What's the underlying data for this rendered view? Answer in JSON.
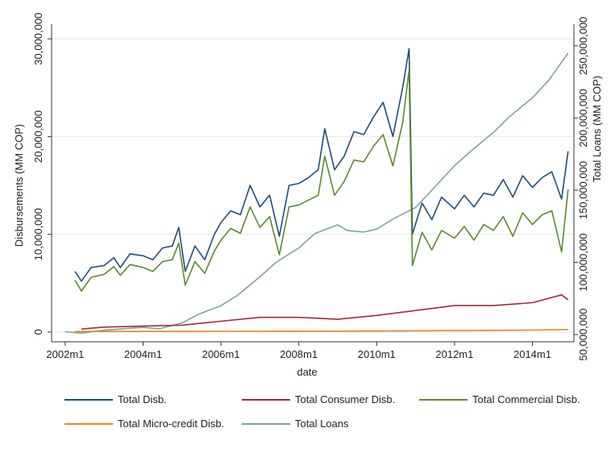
{
  "chart_data": {
    "type": "line",
    "xlabel": "date",
    "ylabel_left": "Disbursements (MM COP)",
    "ylabel_right": "Total Loans (MM COP)",
    "x_range": [
      "2002m1",
      "2014m12"
    ],
    "x_ticks": [
      "2002m1",
      "2004m1",
      "2006m1",
      "2008m1",
      "2010m1",
      "2012m1",
      "2014m1"
    ],
    "y_left_ticks": [
      0,
      10000000,
      20000000,
      30000000
    ],
    "y_left_tick_labels": [
      "0",
      "10,000,000",
      "20,000,000",
      "30,000,000"
    ],
    "y_left_range": [
      -1000000,
      31500000
    ],
    "y_right_ticks": [
      50000000,
      100000000,
      150000000,
      200000000,
      250000000
    ],
    "y_right_tick_labels": [
      "50,000,000",
      "100,000,000",
      "150,000,000",
      "200,000,000",
      "250,000,000"
    ],
    "y_right_range": [
      45000000,
      265000000
    ],
    "grid": "horizontal",
    "legend_position": "bottom",
    "series": [
      {
        "name": "Total Disb.",
        "axis": "left",
        "color": "#1f4e79",
        "points": [
          [
            "2002m4",
            6200000
          ],
          [
            "2002m6",
            5200000
          ],
          [
            "2002m9",
            6600000
          ],
          [
            "2003m1",
            6800000
          ],
          [
            "2003m4",
            7600000
          ],
          [
            "2003m6",
            6600000
          ],
          [
            "2003m9",
            8000000
          ],
          [
            "2004m1",
            7800000
          ],
          [
            "2004m4",
            7400000
          ],
          [
            "2004m7",
            8600000
          ],
          [
            "2004m10",
            8800000
          ],
          [
            "2004m12",
            10700000
          ],
          [
            "2005m2",
            6200000
          ],
          [
            "2005m5",
            8800000
          ],
          [
            "2005m8",
            7400000
          ],
          [
            "2005m11",
            10000000
          ],
          [
            "2006m1",
            11200000
          ],
          [
            "2006m4",
            12400000
          ],
          [
            "2006m7",
            12000000
          ],
          [
            "2006m10",
            15000000
          ],
          [
            "2007m1",
            12800000
          ],
          [
            "2007m4",
            14000000
          ],
          [
            "2007m7",
            9800000
          ],
          [
            "2007m10",
            15000000
          ],
          [
            "2008m1",
            15200000
          ],
          [
            "2008m4",
            15800000
          ],
          [
            "2008m7",
            16600000
          ],
          [
            "2008m9",
            20800000
          ],
          [
            "2008m12",
            16600000
          ],
          [
            "2009m3",
            18000000
          ],
          [
            "2009m6",
            20500000
          ],
          [
            "2009m9",
            20200000
          ],
          [
            "2009m12",
            22000000
          ],
          [
            "2010m3",
            23500000
          ],
          [
            "2010m6",
            20000000
          ],
          [
            "2010m9",
            25000000
          ],
          [
            "2010m11",
            29000000
          ],
          [
            "2010m12",
            10000000
          ],
          [
            "2011m3",
            13200000
          ],
          [
            "2011m6",
            11500000
          ],
          [
            "2011m9",
            13800000
          ],
          [
            "2012m1",
            12600000
          ],
          [
            "2012m4",
            14000000
          ],
          [
            "2012m7",
            12800000
          ],
          [
            "2012m10",
            14200000
          ],
          [
            "2013m1",
            14000000
          ],
          [
            "2013m4",
            15600000
          ],
          [
            "2013m7",
            13800000
          ],
          [
            "2013m10",
            16000000
          ],
          [
            "2014m1",
            14800000
          ],
          [
            "2014m4",
            15800000
          ],
          [
            "2014m7",
            16400000
          ],
          [
            "2014m10",
            13600000
          ],
          [
            "2014m12",
            18500000
          ]
        ]
      },
      {
        "name": "Total Consumer Disb.",
        "axis": "left",
        "color": "#a52a3a",
        "points": [
          [
            "2002m6",
            300000
          ],
          [
            "2003m1",
            500000
          ],
          [
            "2004m1",
            600000
          ],
          [
            "2005m1",
            700000
          ],
          [
            "2006m1",
            1100000
          ],
          [
            "2007m1",
            1500000
          ],
          [
            "2008m1",
            1500000
          ],
          [
            "2009m1",
            1300000
          ],
          [
            "2010m1",
            1700000
          ],
          [
            "2011m1",
            2200000
          ],
          [
            "2012m1",
            2700000
          ],
          [
            "2013m1",
            2700000
          ],
          [
            "2014m1",
            3000000
          ],
          [
            "2014m10",
            3800000
          ],
          [
            "2014m12",
            3300000
          ]
        ]
      },
      {
        "name": "Total Commercial Disb.",
        "axis": "left",
        "color": "#5b8a2c",
        "points": [
          [
            "2002m4",
            5300000
          ],
          [
            "2002m6",
            4200000
          ],
          [
            "2002m9",
            5600000
          ],
          [
            "2003m1",
            5900000
          ],
          [
            "2003m4",
            6700000
          ],
          [
            "2003m6",
            5800000
          ],
          [
            "2003m9",
            6900000
          ],
          [
            "2004m1",
            6600000
          ],
          [
            "2004m4",
            6200000
          ],
          [
            "2004m7",
            7200000
          ],
          [
            "2004m10",
            7400000
          ],
          [
            "2004m12",
            9100000
          ],
          [
            "2005m2",
            4800000
          ],
          [
            "2005m5",
            7200000
          ],
          [
            "2005m8",
            6000000
          ],
          [
            "2005m11",
            8300000
          ],
          [
            "2006m1",
            9400000
          ],
          [
            "2006m4",
            10600000
          ],
          [
            "2006m7",
            10100000
          ],
          [
            "2006m10",
            12800000
          ],
          [
            "2007m1",
            10700000
          ],
          [
            "2007m4",
            11800000
          ],
          [
            "2007m7",
            7900000
          ],
          [
            "2007m10",
            12800000
          ],
          [
            "2008m1",
            13000000
          ],
          [
            "2008m4",
            13500000
          ],
          [
            "2008m7",
            14000000
          ],
          [
            "2008m9",
            18000000
          ],
          [
            "2008m12",
            14000000
          ],
          [
            "2009m3",
            15400000
          ],
          [
            "2009m6",
            17600000
          ],
          [
            "2009m9",
            17400000
          ],
          [
            "2009m12",
            19000000
          ],
          [
            "2010m3",
            20200000
          ],
          [
            "2010m6",
            17000000
          ],
          [
            "2010m9",
            21400000
          ],
          [
            "2010m11",
            26800000
          ],
          [
            "2010m12",
            6800000
          ],
          [
            "2011m3",
            10200000
          ],
          [
            "2011m6",
            8400000
          ],
          [
            "2011m9",
            10400000
          ],
          [
            "2012m1",
            9600000
          ],
          [
            "2012m4",
            10800000
          ],
          [
            "2012m7",
            9400000
          ],
          [
            "2012m10",
            11000000
          ],
          [
            "2013m1",
            10400000
          ],
          [
            "2013m4",
            11800000
          ],
          [
            "2013m7",
            9800000
          ],
          [
            "2013m10",
            12200000
          ],
          [
            "2014m1",
            11000000
          ],
          [
            "2014m4",
            12000000
          ],
          [
            "2014m7",
            12400000
          ],
          [
            "2014m10",
            8200000
          ],
          [
            "2014m12",
            14600000
          ]
        ]
      },
      {
        "name": "Total Micro-credit Disb.",
        "axis": "left",
        "color": "#e8861a",
        "points": [
          [
            "2002m4",
            50000
          ],
          [
            "2004m1",
            60000
          ],
          [
            "2006m1",
            70000
          ],
          [
            "2008m1",
            80000
          ],
          [
            "2010m1",
            100000
          ],
          [
            "2012m1",
            150000
          ],
          [
            "2014m1",
            200000
          ],
          [
            "2014m12",
            250000
          ]
        ]
      },
      {
        "name": "Total Loans",
        "axis": "right",
        "color": "#7fa39c",
        "points": [
          [
            "2002m1",
            52000000
          ],
          [
            "2002m6",
            51000000
          ],
          [
            "2003m1",
            53000000
          ],
          [
            "2004m1",
            55000000
          ],
          [
            "2004m6",
            54000000
          ],
          [
            "2005m1",
            58000000
          ],
          [
            "2005m6",
            64000000
          ],
          [
            "2006m1",
            70000000
          ],
          [
            "2006m6",
            77000000
          ],
          [
            "2007m1",
            90000000
          ],
          [
            "2007m6",
            100000000
          ],
          [
            "2008m1",
            110000000
          ],
          [
            "2008m6",
            120000000
          ],
          [
            "2009m1",
            126000000
          ],
          [
            "2009m4",
            122000000
          ],
          [
            "2009m9",
            121000000
          ],
          [
            "2010m1",
            123000000
          ],
          [
            "2010m6",
            130000000
          ],
          [
            "2011m1",
            138000000
          ],
          [
            "2011m6",
            150000000
          ],
          [
            "2012m1",
            167000000
          ],
          [
            "2012m6",
            177000000
          ],
          [
            "2013m1",
            190000000
          ],
          [
            "2013m6",
            201000000
          ],
          [
            "2014m1",
            214000000
          ],
          [
            "2014m6",
            226000000
          ],
          [
            "2014m12",
            245000000
          ]
        ]
      }
    ]
  }
}
